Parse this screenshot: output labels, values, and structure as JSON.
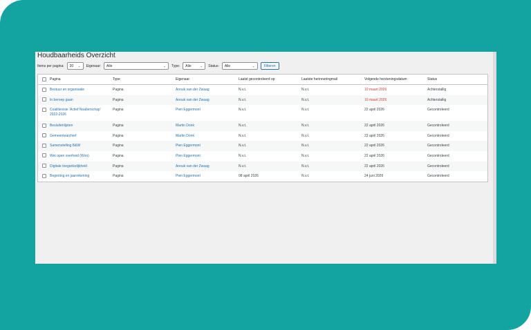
{
  "page": {
    "title": "Houdbaarheids Overzicht",
    "colors": {
      "background": "#13a3a0",
      "panel": "#f0f0f1",
      "link": "#2271b1",
      "overdue": "#d63638"
    }
  },
  "filters": {
    "per_page_label": "Items per pagina:",
    "per_page_value": "20",
    "owner_label": "Eigenaar:",
    "owner_value": "Alle",
    "type_label": "Type:",
    "type_value": "Alle",
    "status_label": "Status:",
    "status_value": "Alle",
    "filter_button": "Filteren"
  },
  "table": {
    "headers": [
      "Pagina",
      "Type",
      "Eigenaar",
      "Laatst gecontroleerd op",
      "Laatste herinneringmail",
      "Volgende herzieningsdatum",
      "Status"
    ],
    "rows": [
      {
        "page": "Bestuur en organisatie",
        "type": "Pagina",
        "owner": "Anouk van der Zwaag",
        "last_checked": "N.v.t.",
        "last_mail": "N.v.t.",
        "next_review": "10 maart 2026",
        "status": "Achterstallig"
      },
      {
        "page": "In beroep gaan",
        "type": "Pagina",
        "owner": "Anouk van der Zwaag",
        "last_checked": "N.v.t.",
        "last_mail": "N.v.t.",
        "next_review": "10 maart 2026",
        "status": "Achterstallig"
      },
      {
        "page": "Coalitievisie 'Actief Noaberschap' 2022-2026",
        "type": "Pagina",
        "owner": "Pien Eggermont",
        "last_checked": "N.v.t.",
        "last_mail": "N.v.t.",
        "next_review": "22 april 2026",
        "status": "Gecontroleerd"
      },
      {
        "page": "Besluitenlijsten",
        "type": "Pagina",
        "owner": "Martin Donk",
        "last_checked": "N.v.t.",
        "last_mail": "N.v.t.",
        "next_review": "22 april 2026",
        "status": "Gecontroleerd"
      },
      {
        "page": "Gemeentearchief",
        "type": "Pagina",
        "owner": "Martin Donk",
        "last_checked": "N.v.t.",
        "last_mail": "N.v.t.",
        "next_review": "22 april 2026",
        "status": "Gecontroleerd"
      },
      {
        "page": "Samenstelling B&W",
        "type": "Pagina",
        "owner": "Pien Eggermont",
        "last_checked": "N.v.t.",
        "last_mail": "N.v.t.",
        "next_review": "22 april 2026",
        "status": "Gecontroleerd"
      },
      {
        "page": "Wet open overheid (Woo)",
        "type": "Pagina",
        "owner": "Pien Eggermont",
        "last_checked": "N.v.t.",
        "last_mail": "N.v.t.",
        "next_review": "22 april 2026",
        "status": "Gecontroleerd"
      },
      {
        "page": "Digitale toegankelijkheid",
        "type": "Pagina",
        "owner": "Anouk van der Zwaag",
        "last_checked": "N.v.t.",
        "last_mail": "N.v.t.",
        "next_review": "22 april 2026",
        "status": "Gecontroleerd"
      },
      {
        "page": "Begroting en jaarrekening",
        "type": "Pagina",
        "owner": "Pien Eggermont",
        "last_checked": "08 april 2026",
        "last_mail": "N.v.t.",
        "next_review": "24 juni 2026",
        "status": "Gecontroleerd"
      }
    ]
  }
}
